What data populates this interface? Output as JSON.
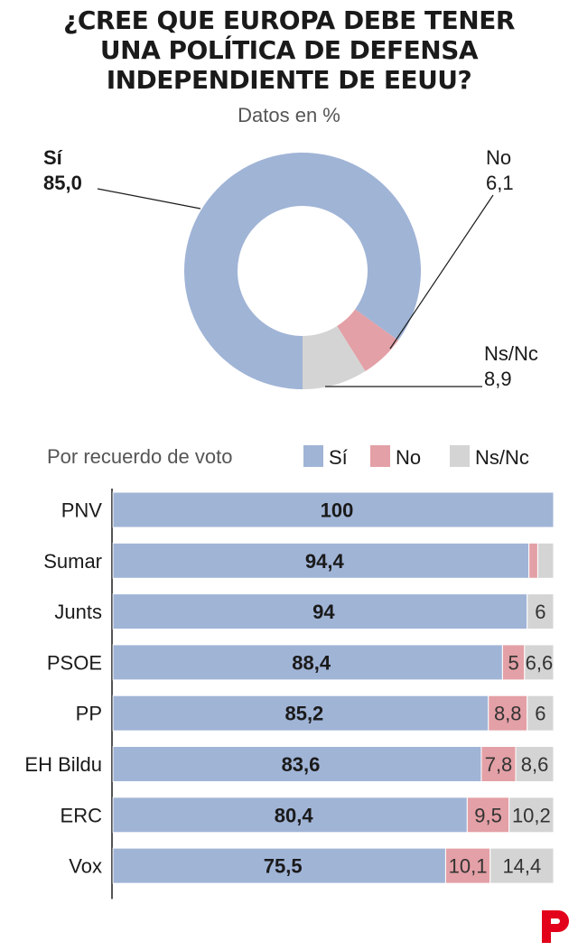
{
  "title_lines": [
    "¿CREE QUE EUROPA DEBE TENER",
    "UNA POLÍTICA DE DEFENSA",
    "INDEPENDIENTE DE EEUU?"
  ],
  "subtitle": "Datos en %",
  "colors": {
    "si": "#a0b4d6",
    "no": "#e3a0a6",
    "nsnc": "#d4d4d4",
    "text": "#1a1a1a",
    "brand": "#e2001a"
  },
  "chart_data": [
    {
      "type": "pie",
      "title": "¿CREE QUE EUROPA DEBE TENER UNA POLÍTICA DE DEFENSA INDEPENDIENTE DE EEUU?",
      "subtitle": "Datos en %",
      "donut": true,
      "categories": [
        "Sí",
        "No",
        "Ns/Nc"
      ],
      "values": [
        85.0,
        6.1,
        8.9
      ],
      "value_labels": [
        "85,0",
        "6,1",
        "8,9"
      ],
      "colors": [
        "#a0b4d6",
        "#e3a0a6",
        "#d4d4d4"
      ]
    },
    {
      "type": "bar",
      "orientation": "horizontal",
      "stacked": true,
      "title": "Por recuerdo de voto",
      "legend": [
        "Sí",
        "No",
        "Ns/Nc"
      ],
      "legend_position": "top",
      "xlim": [
        0,
        100
      ],
      "categories": [
        "PNV",
        "Sumar",
        "Junts",
        "PSOE",
        "PP",
        "EH Bildu",
        "ERC",
        "Vox"
      ],
      "series": [
        {
          "name": "Sí",
          "color": "#a0b4d6",
          "values": [
            100,
            94.4,
            94,
            88.4,
            85.2,
            83.6,
            80.4,
            75.5
          ],
          "labels": [
            "100",
            "94,4",
            "94",
            "88,4",
            "85,2",
            "83,6",
            "80,4",
            "75,5"
          ]
        },
        {
          "name": "No",
          "color": "#e3a0a6",
          "values": [
            0,
            2.0,
            0,
            5,
            8.8,
            7.8,
            9.5,
            10.1
          ],
          "labels": [
            "",
            "",
            "",
            "5",
            "8,8",
            "7,8",
            "9,5",
            "10,1"
          ]
        },
        {
          "name": "Ns/Nc",
          "color": "#d4d4d4",
          "values": [
            0,
            3.6,
            6,
            6.6,
            6,
            8.6,
            10.2,
            14.4
          ],
          "labels": [
            "",
            "",
            "6",
            "6,6",
            "6",
            "8,6",
            "10,2",
            "14,4"
          ]
        }
      ]
    }
  ]
}
